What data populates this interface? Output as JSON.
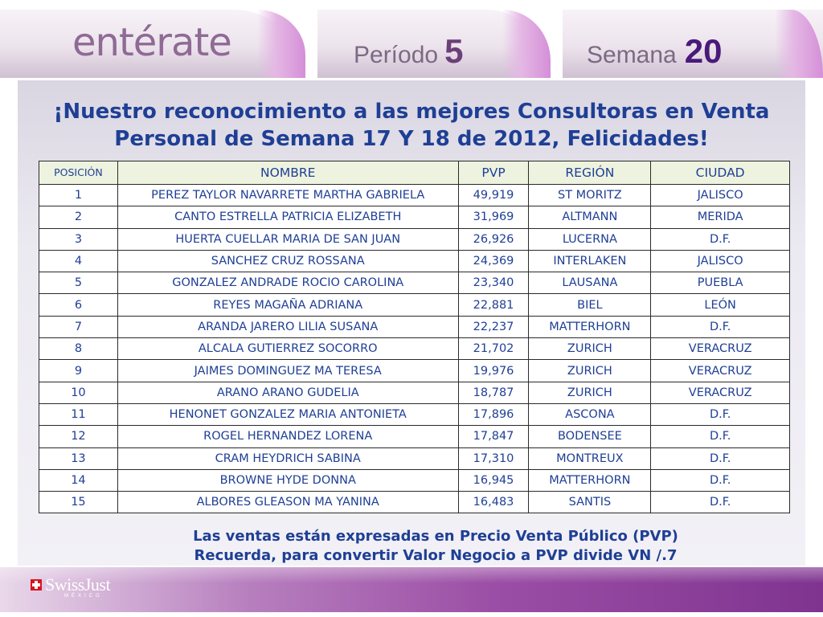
{
  "header": {
    "brand": "entérate",
    "periodo_label": "Período",
    "periodo_num": "5",
    "semana_label": "Semana",
    "semana_num": "20"
  },
  "title": {
    "line1": "¡Nuestro reconocimiento a las mejores Consultoras en Venta",
    "line2": "Personal de Semana 17 Y 18 de 2012, Felicidades!"
  },
  "table": {
    "headers": [
      "POSICIÓN",
      "NOMBRE",
      "PVP",
      "REGIÓN",
      "CIUDAD"
    ],
    "rows": [
      [
        "1",
        "PEREZ TAYLOR NAVARRETE MARTHA GABRIELA",
        "49,919",
        "ST MORITZ",
        "JALISCO"
      ],
      [
        "2",
        "CANTO ESTRELLA PATRICIA ELIZABETH",
        "31,969",
        "ALTMANN",
        "MERIDA"
      ],
      [
        "3",
        "HUERTA CUELLAR MARIA DE SAN JUAN",
        "26,926",
        "LUCERNA",
        "D.F."
      ],
      [
        "4",
        "SANCHEZ CRUZ ROSSANA",
        "24,369",
        "INTERLAKEN",
        "JALISCO"
      ],
      [
        "5",
        "GONZALEZ ANDRADE ROCIO CAROLINA",
        "23,340",
        "LAUSANA",
        "PUEBLA"
      ],
      [
        "6",
        "REYES MAGAÑA ADRIANA",
        "22,881",
        "BIEL",
        "LEÓN"
      ],
      [
        "7",
        "ARANDA JARERO LILIA SUSANA",
        "22,237",
        "MATTERHORN",
        "D.F."
      ],
      [
        "8",
        "ALCALA GUTIERREZ SOCORRO",
        "21,702",
        "ZURICH",
        "VERACRUZ"
      ],
      [
        "9",
        "JAIMES DOMINGUEZ MA TERESA",
        "19,976",
        "ZURICH",
        "VERACRUZ"
      ],
      [
        "10",
        "ARANO ARANO GUDELIA",
        "18,787",
        "ZURICH",
        "VERACRUZ"
      ],
      [
        "11",
        "HENONET GONZALEZ MARIA ANTONIETA",
        "17,896",
        "ASCONA",
        "D.F."
      ],
      [
        "12",
        "ROGEL HERNANDEZ LORENA",
        "17,847",
        "BODENSEE",
        "D.F."
      ],
      [
        "13",
        "CRAM HEYDRICH SABINA",
        "17,310",
        "MONTREUX",
        "D.F."
      ],
      [
        "14",
        "BROWNE HYDE DONNA",
        "16,945",
        "MATTERHORN",
        "D.F."
      ],
      [
        "15",
        "ALBORES GLEASON MA YANINA",
        "16,483",
        "SANTIS",
        "D.F."
      ]
    ]
  },
  "note": {
    "line1": "Las ventas están expresadas en Precio Venta Público (PVP)",
    "line2": "Recuerda, para convertir Valor Negocio a PVP divide  VN /.7"
  },
  "footer": {
    "logo_text": "SwissJust",
    "logo_sub": "MÉXICO"
  },
  "colors": {
    "title_blue": "#1f3f95",
    "header_purple": "#8e6a95",
    "footer_purple": "#9b4ea5",
    "table_header_bg": "#eef3df"
  }
}
